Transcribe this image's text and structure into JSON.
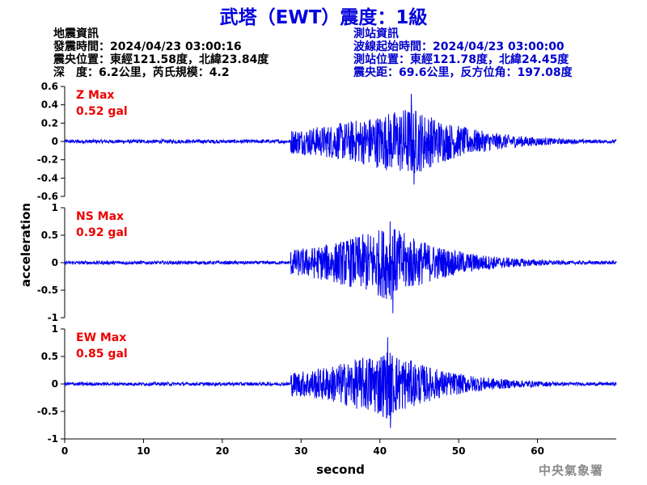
{
  "page": {
    "title": "武塔（EWT）震度：1級",
    "earthquake_info": {
      "heading": "地震資訊",
      "origin_time": "發震時間：2024/04/23 03:00:16",
      "epicenter": "震央位置：東經121.58度，北緯23.84度",
      "depth_magnitude": "深　度：6.2公里，芮氏規模：4.2"
    },
    "station_info": {
      "heading": "測站資訊",
      "wave_start": "波線起始時間：2024/04/23 03:00:00",
      "location": "測站位置：東經121.78度，北緯24.45度",
      "distance": "震央距：69.6公里，反方位角：197.08度"
    },
    "credit": "中央氣象署"
  },
  "colors": {
    "trace": "#0000ee",
    "label": "#ee0000",
    "title": "#0000dd",
    "station_info": "#0000cc"
  },
  "chart_data": {
    "type": "line",
    "xlabel": "second",
    "ylabel": "acceleration",
    "xlim": [
      0,
      70
    ],
    "xticks": [
      0,
      10,
      20,
      30,
      40,
      50,
      60
    ],
    "series": [
      {
        "name": "Z Max",
        "max_label": "0.52 gal",
        "ylim": [
          -0.6,
          0.6
        ],
        "yticks": [
          0.6,
          0.4,
          0.2,
          0,
          -0.2,
          -0.4,
          -0.6
        ],
        "noise_amplitude": 0.02,
        "onset_time": 28.7,
        "peak_time": 44,
        "peak_value": 0.52,
        "min_value": -0.47
      },
      {
        "name": "NS Max",
        "max_label": "0.92 gal",
        "ylim": [
          -1,
          1
        ],
        "yticks": [
          1,
          0.5,
          0,
          -0.5,
          -1
        ],
        "noise_amplitude": 0.03,
        "onset_time": 28.7,
        "peak_time": 41.3,
        "peak_value": 0.75,
        "min_value": -0.92
      },
      {
        "name": "EW Max",
        "max_label": "0.85 gal",
        "ylim": [
          -1,
          1
        ],
        "yticks": [
          1,
          0.5,
          0,
          -0.5,
          -1
        ],
        "noise_amplitude": 0.03,
        "onset_time": 28.7,
        "peak_time": 41,
        "peak_value": 0.85,
        "min_value": -0.8
      }
    ]
  }
}
